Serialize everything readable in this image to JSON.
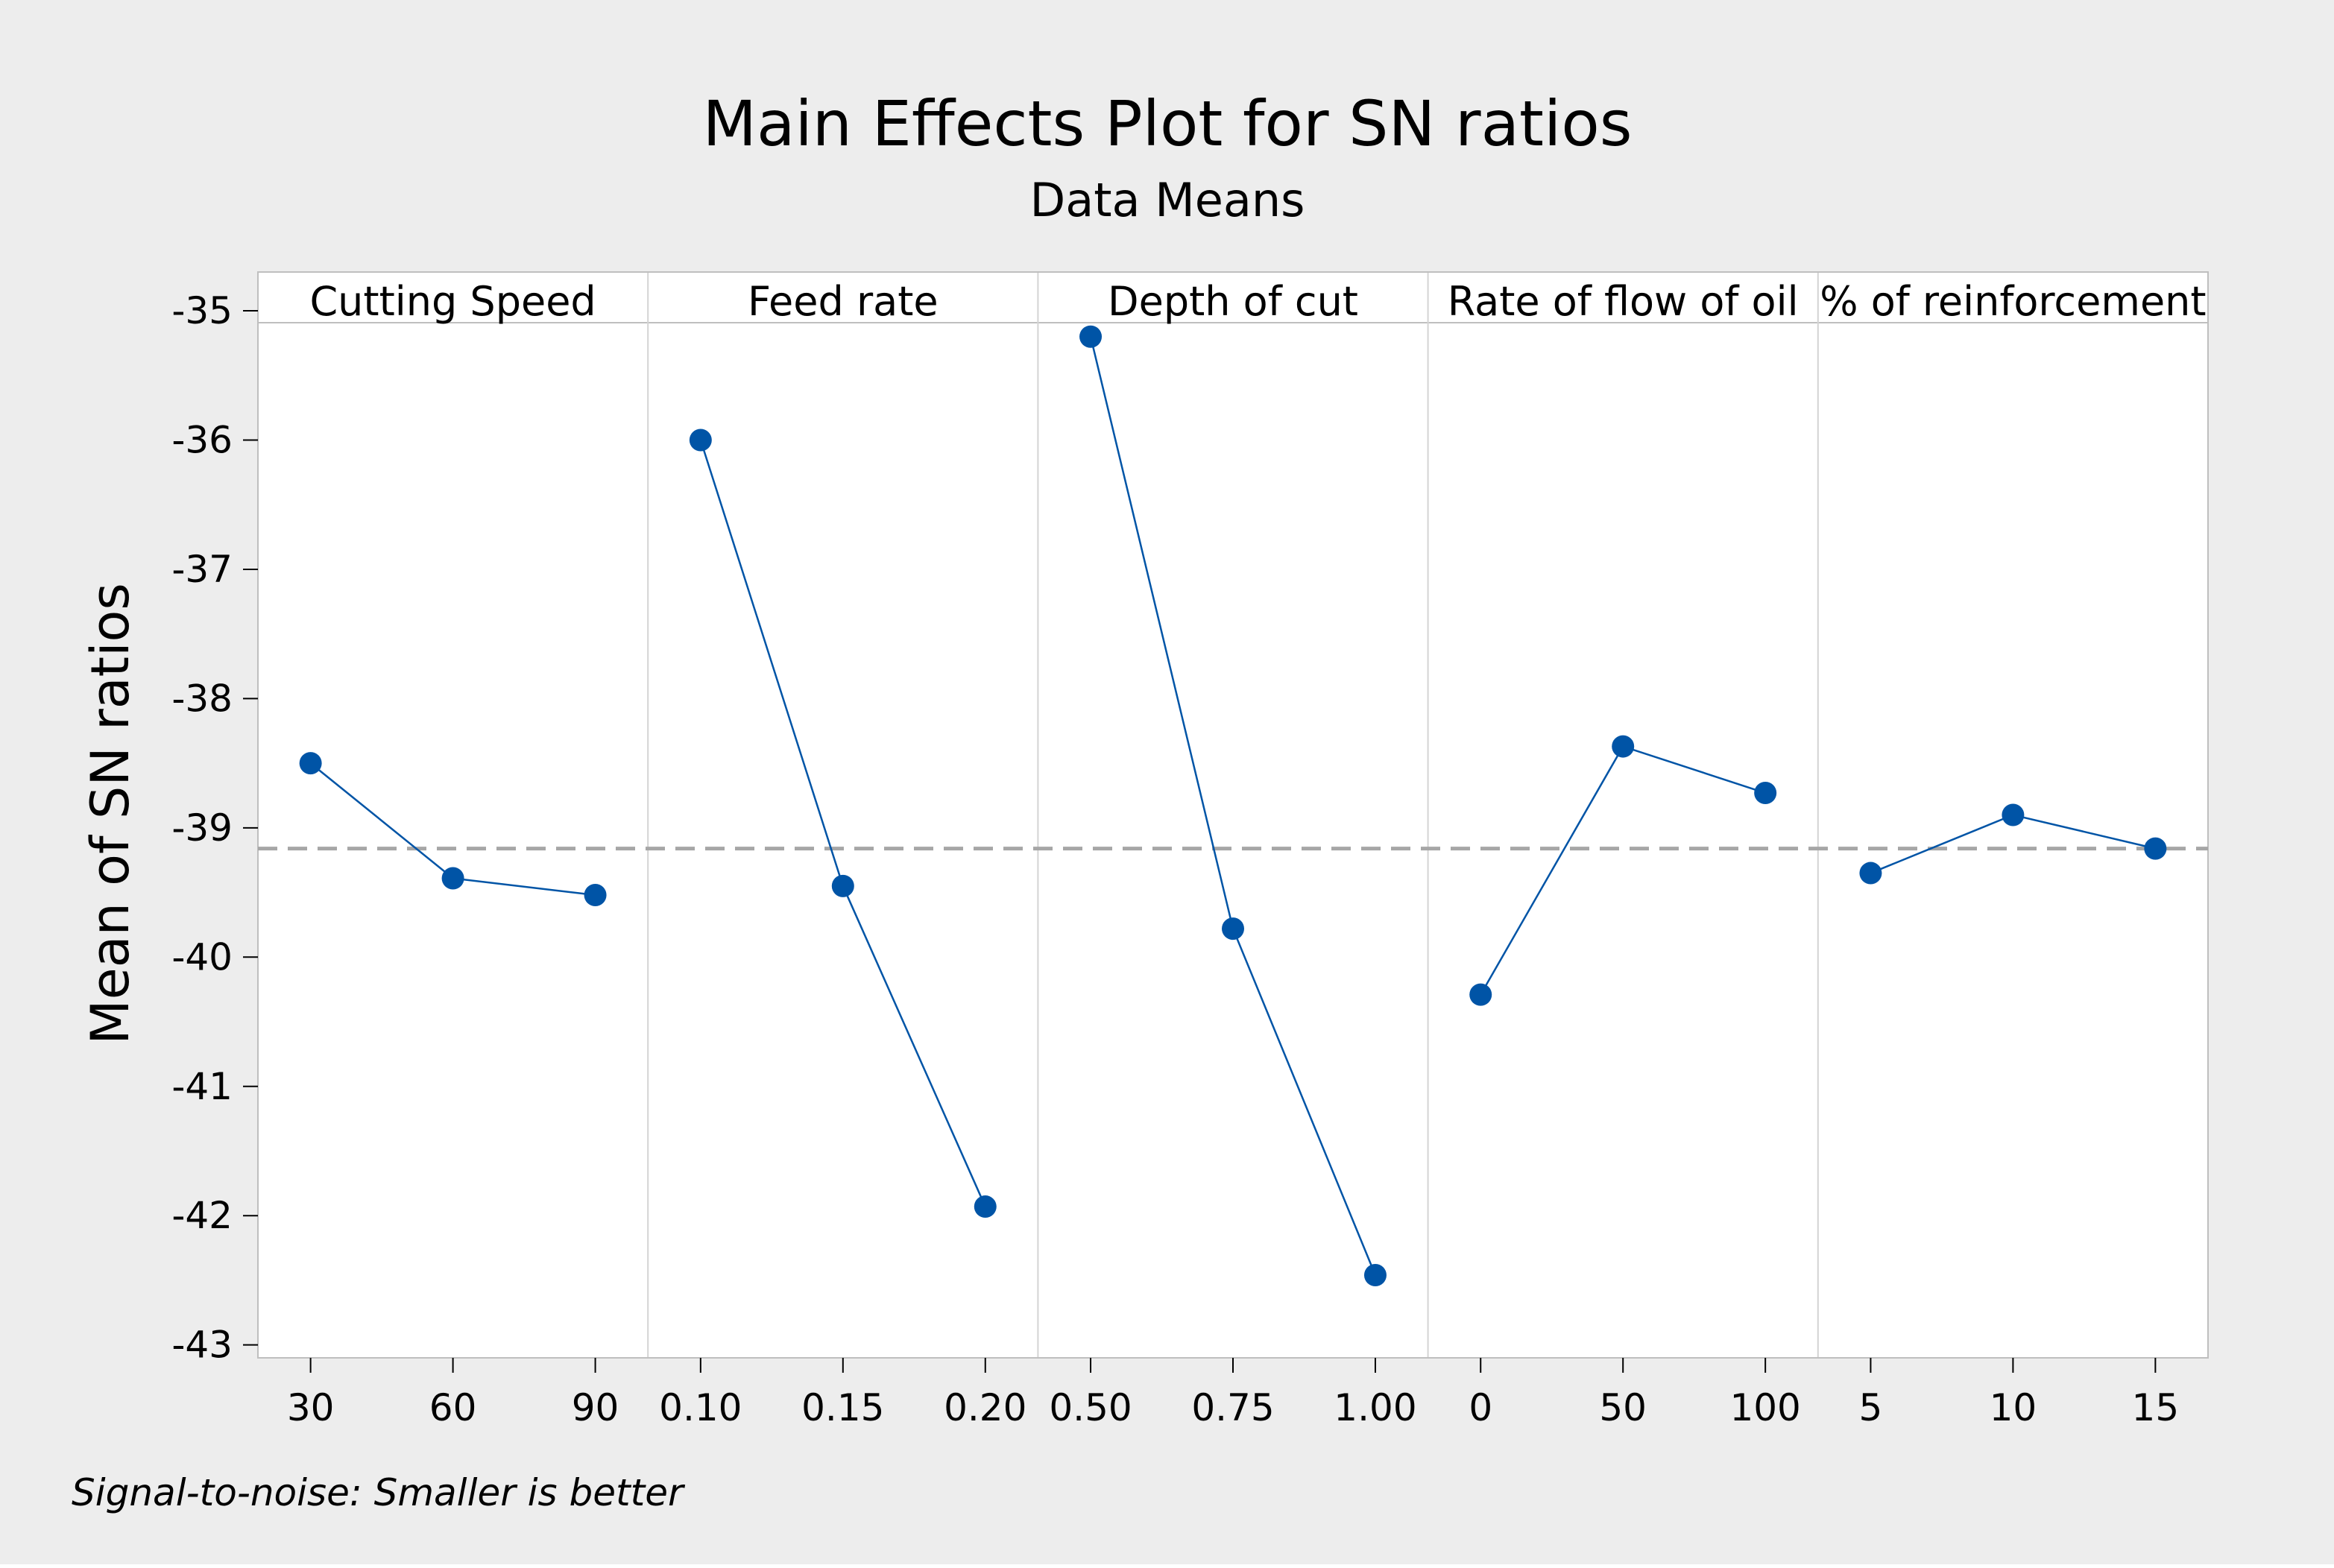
{
  "chart_data": {
    "type": "line",
    "title": "Main Effects Plot for SN ratios",
    "subtitle": "Data Means",
    "ylabel": "Mean of SN ratios",
    "ylim": [
      -43.1,
      -34.7
    ],
    "yticks": [
      -35,
      -36,
      -37,
      -38,
      -39,
      -40,
      -41,
      -42,
      -43
    ],
    "reference_mean": -39.16,
    "footnote": "Signal-to-noise: Smaller is better",
    "colors": {
      "series": "#0054a6",
      "reference": "#a6a6a6",
      "background": "#ededed",
      "plot": "#ffffff"
    },
    "panels": [
      {
        "name": "Cutting Speed",
        "categories": [
          "30",
          "60",
          "90"
        ],
        "values": [
          -38.5,
          -39.39,
          -39.52
        ]
      },
      {
        "name": "Feed rate",
        "categories": [
          "0.10",
          "0.15",
          "0.20"
        ],
        "values": [
          -36.0,
          -39.45,
          -41.93
        ]
      },
      {
        "name": "Depth of cut",
        "categories": [
          "0.50",
          "0.75",
          "1.00"
        ],
        "values": [
          -35.2,
          -39.78,
          -42.46
        ]
      },
      {
        "name": "Rate of flow of oil",
        "categories": [
          "0",
          "50",
          "100"
        ],
        "values": [
          -40.29,
          -38.37,
          -38.73
        ]
      },
      {
        "name": "% of reinforcement",
        "categories": [
          "5",
          "10",
          "15"
        ],
        "values": [
          -39.35,
          -38.9,
          -39.16
        ]
      }
    ]
  }
}
